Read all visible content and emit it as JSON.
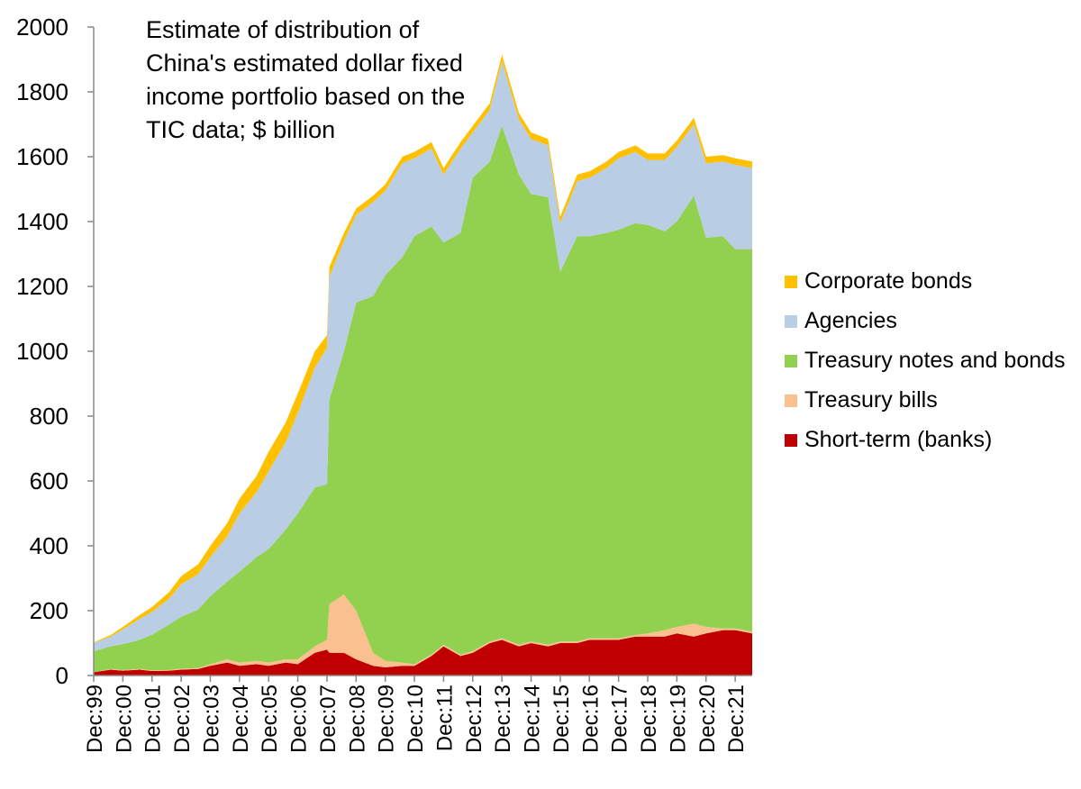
{
  "chart_data": {
    "type": "area",
    "stacked": true,
    "title_lines": [
      "Estimate of distribution of",
      "China's estimated dollar fixed",
      "income portfolio based on the",
      "TIC data; $ billion"
    ],
    "xlabel": "",
    "ylabel": "",
    "ylim": [
      0,
      2000
    ],
    "yticks": [
      0,
      200,
      400,
      600,
      800,
      1000,
      1200,
      1400,
      1600,
      1800,
      2000
    ],
    "xlim": [
      1999.917,
      2022.5
    ],
    "xticks": [
      {
        "label": "Dec:99",
        "x": 1999.917
      },
      {
        "label": "Dec:00",
        "x": 2000.917
      },
      {
        "label": "Dec:01",
        "x": 2001.917
      },
      {
        "label": "Dec:02",
        "x": 2002.917
      },
      {
        "label": "Dec:03",
        "x": 2003.917
      },
      {
        "label": "Dec:04",
        "x": 2004.917
      },
      {
        "label": "Dec:05",
        "x": 2005.917
      },
      {
        "label": "Dec:06",
        "x": 2006.917
      },
      {
        "label": "Dec:07",
        "x": 2007.917
      },
      {
        "label": "Dec:08",
        "x": 2008.917
      },
      {
        "label": "Dec:09",
        "x": 2009.917
      },
      {
        "label": "Dec:10",
        "x": 2010.917
      },
      {
        "label": "Dec:11",
        "x": 2011.917
      },
      {
        "label": "Dec:12",
        "x": 2012.917
      },
      {
        "label": "Dec:13",
        "x": 2013.917
      },
      {
        "label": "Dec:14",
        "x": 2014.917
      },
      {
        "label": "Dec:15",
        "x": 2015.917
      },
      {
        "label": "Dec:16",
        "x": 2016.917
      },
      {
        "label": "Dec:17",
        "x": 2017.917
      },
      {
        "label": "Dec:18",
        "x": 2018.917
      },
      {
        "label": "Dec:19",
        "x": 2019.917
      },
      {
        "label": "Dec:20",
        "x": 2020.917
      },
      {
        "label": "Dec:21",
        "x": 2021.917
      }
    ],
    "grid": false,
    "legend_position": "right",
    "x": [
      1999.917,
      2000.5,
      2000.917,
      2001.5,
      2001.917,
      2002.5,
      2002.917,
      2003.5,
      2003.917,
      2004.5,
      2004.917,
      2005.5,
      2005.917,
      2006.5,
      2006.917,
      2007.5,
      2007.917,
      2008.0,
      2008.5,
      2008.917,
      2009.5,
      2009.917,
      2010.5,
      2010.917,
      2011.5,
      2011.917,
      2012.5,
      2012.917,
      2013.5,
      2013.917,
      2014.5,
      2014.917,
      2015.5,
      2015.917,
      2016.5,
      2016.917,
      2017.5,
      2017.917,
      2018.5,
      2018.917,
      2019.5,
      2019.917,
      2020.5,
      2020.917,
      2021.5,
      2021.917,
      2022.5
    ],
    "series": [
      {
        "name": "Short-term (banks)",
        "color": "#c00000",
        "values": [
          10,
          18,
          15,
          18,
          14,
          15,
          18,
          20,
          30,
          40,
          30,
          35,
          30,
          40,
          35,
          70,
          80,
          70,
          70,
          50,
          30,
          25,
          30,
          30,
          60,
          90,
          60,
          70,
          100,
          110,
          90,
          100,
          90,
          100,
          100,
          110,
          110,
          110,
          120,
          120,
          120,
          130,
          120,
          130,
          140,
          140,
          130
        ]
      },
      {
        "name": "Treasury bills",
        "color": "#fac090",
        "values": [
          0,
          2,
          2,
          2,
          2,
          2,
          3,
          3,
          5,
          10,
          10,
          10,
          10,
          10,
          15,
          20,
          30,
          150,
          180,
          150,
          40,
          20,
          10,
          5,
          5,
          5,
          5,
          5,
          5,
          5,
          5,
          5,
          5,
          5,
          5,
          5,
          5,
          5,
          5,
          10,
          20,
          20,
          40,
          20,
          5,
          5,
          5
        ]
      },
      {
        "name": "Treasury notes and bonds",
        "color": "#92d050",
        "values": [
          65,
          70,
          80,
          90,
          110,
          140,
          160,
          180,
          210,
          240,
          280,
          320,
          350,
          400,
          450,
          490,
          480,
          630,
          750,
          950,
          1100,
          1190,
          1250,
          1320,
          1320,
          1240,
          1300,
          1460,
          1480,
          1580,
          1450,
          1380,
          1380,
          1140,
          1250,
          1240,
          1250,
          1260,
          1270,
          1260,
          1230,
          1250,
          1320,
          1200,
          1210,
          1170,
          1180
        ]
      },
      {
        "name": "Agencies",
        "color": "#b9cde5",
        "values": [
          25,
          30,
          45,
          65,
          70,
          80,
          100,
          110,
          120,
          140,
          180,
          200,
          240,
          270,
          310,
          370,
          420,
          380,
          340,
          270,
          290,
          260,
          290,
          240,
          240,
          210,
          260,
          140,
          160,
          200,
          170,
          170,
          160,
          150,
          170,
          180,
          200,
          220,
          220,
          200,
          220,
          230,
          220,
          230,
          230,
          260,
          250
        ]
      },
      {
        "name": "Corporate bonds",
        "color": "#ffc000",
        "values": [
          2,
          5,
          8,
          12,
          15,
          20,
          25,
          30,
          35,
          40,
          45,
          50,
          60,
          60,
          60,
          50,
          40,
          30,
          25,
          20,
          20,
          20,
          20,
          20,
          20,
          20,
          20,
          20,
          20,
          20,
          20,
          20,
          20,
          20,
          20,
          20,
          20,
          20,
          20,
          20,
          20,
          20,
          20,
          20,
          20,
          20,
          20
        ]
      }
    ],
    "legend_entries": [
      {
        "label": "Corporate bonds",
        "color": "#ffc000"
      },
      {
        "label": "Agencies",
        "color": "#b9cde5"
      },
      {
        "label": "Treasury notes and bonds",
        "color": "#92d050"
      },
      {
        "label": "Treasury bills",
        "color": "#fac090"
      },
      {
        "label": "Short-term (banks)",
        "color": "#c00000"
      }
    ]
  }
}
